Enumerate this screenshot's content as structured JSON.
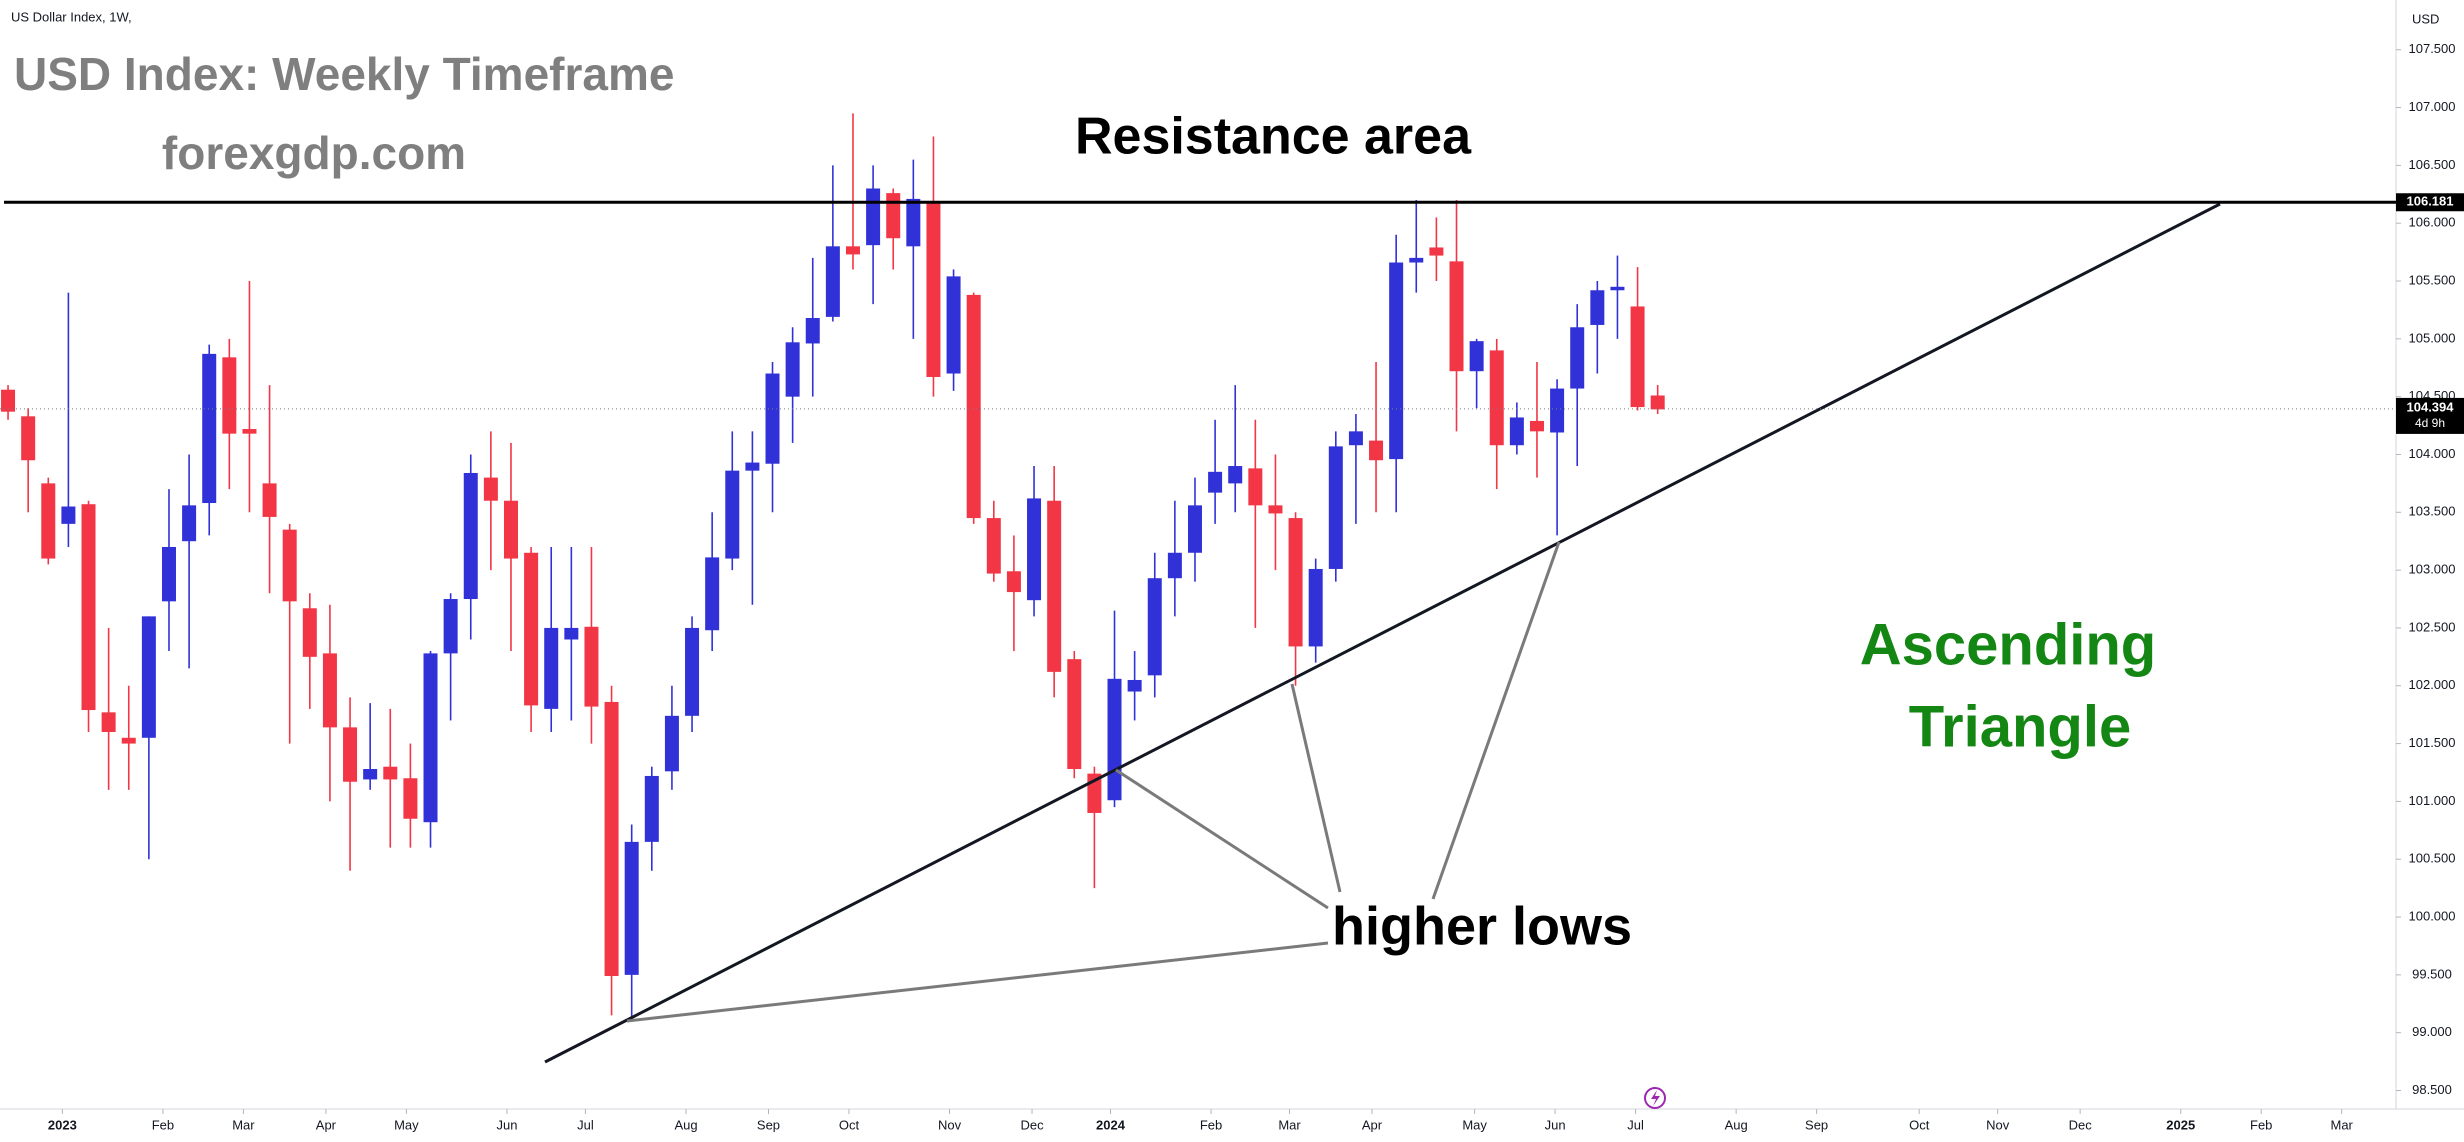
{
  "chart_data": {
    "type": "candlestick",
    "symbol_label": "US Dollar Index, 1W,",
    "currency": "USD",
    "title": "USD Index: Weekly Timeframe",
    "subtitle": "forexgdp.com",
    "annotations": {
      "resistance": "Resistance area",
      "pattern": [
        "Ascending",
        "Triangle"
      ],
      "lows": "higher lows"
    },
    "up_color": "#3131d8",
    "down_color": "#f23645",
    "open": [
      104.56,
      104.33,
      103.75,
      103.4,
      103.57,
      101.77,
      101.55,
      101.55,
      102.73,
      103.25,
      103.58,
      104.84,
      104.22,
      103.75,
      103.35,
      102.67,
      102.28,
      101.64,
      101.19,
      101.3,
      101.2,
      100.82,
      102.28,
      102.75,
      103.8,
      103.6,
      103.15,
      101.8,
      102.4,
      102.51,
      101.86,
      99.5,
      100.65,
      101.26,
      101.74,
      102.48,
      103.1,
      103.86,
      103.92,
      104.5,
      104.96,
      105.19,
      105.8,
      105.81,
      106.26,
      105.8,
      106.18,
      104.7,
      105.38,
      103.45,
      102.99,
      102.74,
      103.6,
      102.23,
      101.24,
      101.01,
      101.95,
      102.09,
      102.93,
      103.15,
      103.67,
      103.75,
      103.88,
      103.56,
      103.45,
      102.34,
      103.01,
      104.08,
      104.12,
      103.96,
      105.66,
      105.79,
      105.67,
      104.72,
      104.9,
      104.08,
      104.29,
      104.19,
      104.57,
      105.12,
      105.42,
      105.28,
      104.51
    ],
    "high": [
      104.6,
      104.4,
      103.8,
      105.4,
      103.6,
      102.5,
      102.0,
      102.6,
      103.7,
      104.0,
      104.95,
      105.0,
      105.5,
      104.6,
      103.4,
      102.8,
      102.7,
      101.9,
      101.85,
      101.8,
      101.5,
      102.3,
      102.8,
      104.0,
      104.2,
      104.1,
      103.2,
      103.2,
      103.2,
      103.2,
      102.0,
      100.8,
      101.3,
      102.0,
      102.6,
      103.5,
      104.2,
      104.2,
      104.8,
      105.1,
      105.7,
      106.5,
      106.95,
      106.5,
      106.3,
      106.55,
      106.75,
      105.6,
      105.4,
      103.6,
      103.3,
      103.9,
      103.9,
      102.3,
      101.3,
      102.65,
      102.3,
      103.15,
      103.6,
      103.8,
      104.3,
      104.6,
      104.3,
      104.0,
      103.5,
      103.1,
      104.2,
      104.35,
      104.8,
      105.9,
      106.2,
      106.05,
      106.2,
      105.0,
      105.0,
      104.45,
      104.8,
      104.65,
      105.3,
      105.5,
      105.72,
      105.62,
      104.6
    ],
    "low": [
      104.3,
      103.5,
      103.05,
      103.2,
      101.6,
      101.1,
      101.1,
      100.5,
      102.3,
      102.15,
      103.3,
      103.7,
      103.5,
      102.8,
      101.5,
      101.8,
      101.0,
      100.4,
      101.1,
      100.6,
      100.6,
      100.6,
      101.7,
      102.4,
      103.0,
      102.3,
      101.6,
      101.6,
      101.7,
      101.5,
      99.15,
      99.1,
      100.4,
      101.1,
      101.6,
      102.3,
      103.0,
      102.7,
      103.5,
      104.1,
      104.5,
      105.15,
      105.6,
      105.3,
      105.6,
      105.0,
      104.5,
      104.55,
      103.4,
      102.9,
      102.3,
      102.6,
      101.9,
      101.2,
      100.25,
      100.95,
      101.7,
      101.9,
      102.6,
      102.9,
      103.4,
      103.5,
      102.5,
      103.0,
      102.0,
      102.2,
      102.9,
      103.4,
      103.5,
      103.5,
      105.4,
      105.5,
      104.2,
      104.4,
      103.7,
      104.0,
      103.8,
      103.3,
      103.9,
      104.7,
      105.0,
      104.38,
      104.35
    ],
    "close": [
      104.37,
      103.95,
      103.1,
      103.55,
      101.79,
      101.6,
      101.5,
      102.6,
      103.2,
      103.56,
      104.87,
      104.18,
      104.18,
      103.46,
      102.73,
      102.25,
      101.64,
      101.17,
      101.28,
      101.19,
      100.85,
      102.28,
      102.75,
      103.84,
      103.6,
      103.1,
      101.83,
      102.5,
      102.5,
      101.82,
      99.49,
      100.65,
      101.22,
      101.74,
      102.5,
      103.11,
      103.86,
      103.93,
      104.7,
      104.97,
      105.18,
      105.8,
      105.73,
      106.3,
      105.87,
      106.21,
      104.67,
      105.54,
      103.45,
      102.97,
      102.81,
      103.62,
      102.12,
      101.28,
      100.9,
      102.06,
      102.05,
      102.93,
      103.15,
      103.56,
      103.85,
      103.9,
      103.56,
      103.49,
      102.34,
      103.01,
      104.07,
      104.2,
      103.95,
      105.66,
      105.7,
      105.72,
      104.72,
      104.98,
      104.08,
      104.32,
      104.2,
      104.57,
      105.1,
      105.42,
      105.45,
      104.41,
      104.39
    ],
    "xlim": [
      -0.4,
      118.7
    ],
    "xticks": [
      {
        "value": 2.7,
        "label": "2023"
      },
      {
        "value": 7.7,
        "label": "Feb"
      },
      {
        "value": 11.7,
        "label": "Mar"
      },
      {
        "value": 15.8,
        "label": "Apr"
      },
      {
        "value": 19.8,
        "label": "May"
      },
      {
        "value": 24.8,
        "label": "Jun"
      },
      {
        "value": 28.7,
        "label": "Jul"
      },
      {
        "value": 33.7,
        "label": "Aug"
      },
      {
        "value": 37.8,
        "label": "Sep"
      },
      {
        "value": 41.8,
        "label": "Oct"
      },
      {
        "value": 46.8,
        "label": "Nov"
      },
      {
        "value": 50.9,
        "label": "Dec"
      },
      {
        "value": 54.8,
        "label": "2024"
      },
      {
        "value": 59.8,
        "label": "Feb"
      },
      {
        "value": 63.7,
        "label": "Mar"
      },
      {
        "value": 67.8,
        "label": "Apr"
      },
      {
        "value": 72.9,
        "label": "May"
      },
      {
        "value": 76.9,
        "label": "Jun"
      },
      {
        "value": 80.9,
        "label": "Jul"
      },
      {
        "value": 85.9,
        "label": "Aug"
      },
      {
        "value": 89.9,
        "label": "Sep"
      },
      {
        "value": 95,
        "label": "Oct"
      },
      {
        "value": 98.9,
        "label": "Nov"
      },
      {
        "value": 103,
        "label": "Dec"
      },
      {
        "value": 108,
        "label": "2025"
      },
      {
        "value": 112,
        "label": "Feb"
      },
      {
        "value": 116,
        "label": "Mar"
      }
    ],
    "ylim": [
      98.34,
      107.93
    ],
    "yticks": [
      {
        "value": 98.5,
        "label": "98.500"
      },
      {
        "value": 99,
        "label": "99.000"
      },
      {
        "value": 99.5,
        "label": "99.500"
      },
      {
        "value": 100,
        "label": "100.000"
      },
      {
        "value": 100.5,
        "label": "100.500"
      },
      {
        "value": 101,
        "label": "101.000"
      },
      {
        "value": 101.5,
        "label": "101.500"
      },
      {
        "value": 102,
        "label": "102.000"
      },
      {
        "value": 102.5,
        "label": "102.500"
      },
      {
        "value": 103,
        "label": "103.000"
      },
      {
        "value": 103.5,
        "label": "103.500"
      },
      {
        "value": 104,
        "label": "104.000"
      },
      {
        "value": 104.5,
        "label": "104.500"
      },
      {
        "value": 105,
        "label": "105.000"
      },
      {
        "value": 105.5,
        "label": "105.500"
      },
      {
        "value": 106,
        "label": "106.000"
      },
      {
        "value": 106.5,
        "label": "106.500"
      },
      {
        "value": 107,
        "label": "107.000"
      },
      {
        "value": 107.5,
        "label": "107.500"
      }
    ],
    "resistance_level": {
      "value": 106.181,
      "label": "106.181"
    },
    "last_price": {
      "value": 104.394,
      "label": "104.394",
      "countdown": "4d 9h"
    }
  }
}
